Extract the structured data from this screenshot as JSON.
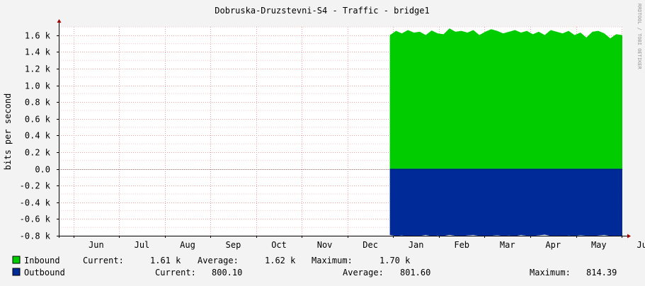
{
  "chart_data": {
    "type": "area",
    "title": "Dobruska-Druzstevni-S4 - Traffic - bridge1",
    "ylabel": "bits per second",
    "watermark": "RRDTOOL / TOBI OETIKER",
    "ylim": [
      -800,
      1700
    ],
    "grid": true,
    "y_ticks": [
      {
        "value": 1600,
        "label": "1.6 k"
      },
      {
        "value": 1400,
        "label": "1.4 k"
      },
      {
        "value": 1200,
        "label": "1.2 k"
      },
      {
        "value": 1000,
        "label": "1.0 k"
      },
      {
        "value": 800,
        "label": "0.8 k"
      },
      {
        "value": 600,
        "label": "0.6 k"
      },
      {
        "value": 400,
        "label": "0.4 k"
      },
      {
        "value": 200,
        "label": "0.2 k"
      },
      {
        "value": 0,
        "label": "0.0"
      },
      {
        "value": -200,
        "label": "-0.2 k"
      },
      {
        "value": -400,
        "label": "-0.4 k"
      },
      {
        "value": -600,
        "label": "-0.6 k"
      },
      {
        "value": -800,
        "label": "-0.8 k"
      }
    ],
    "x_domain": [
      0,
      12.35
    ],
    "month_boundaries": [
      0.32,
      1.32,
      2.32,
      3.32,
      4.32,
      5.32,
      6.32,
      7.32,
      8.32,
      9.32,
      10.32,
      11.32,
      12.32
    ],
    "x_ticks": [
      "Jun",
      "Jul",
      "Aug",
      "Sep",
      "Oct",
      "Nov",
      "Dec",
      "Jan",
      "Feb",
      "Mar",
      "Apr",
      "May",
      "Jun"
    ],
    "data_start": 7.25,
    "series": [
      {
        "name": "Inbound",
        "color": "#00cc00",
        "values": [
          1600,
          1650,
          1620,
          1660,
          1630,
          1640,
          1600,
          1655,
          1620,
          1610,
          1680,
          1640,
          1650,
          1630,
          1660,
          1600,
          1640,
          1670,
          1650,
          1620,
          1640,
          1660,
          1630,
          1650,
          1610,
          1640,
          1600,
          1660,
          1640,
          1620,
          1650,
          1600,
          1630,
          1570,
          1640,
          1650,
          1620,
          1560,
          1610,
          1600
        ],
        "stats": {
          "current_label": "Current:",
          "current": "1.61 k",
          "average_label": "Average:",
          "average": "1.62 k",
          "maximum_label": "Maximum:",
          "maximum": "1.70 k"
        }
      },
      {
        "name": "Outbound",
        "color": "#002a97",
        "values": [
          -790,
          -800,
          -795,
          -805,
          -798,
          -800,
          -790,
          -802,
          -796,
          -800,
          -788,
          -798,
          -802,
          -795,
          -790,
          -800,
          -805,
          -798,
          -792,
          -800,
          -796,
          -802,
          -790,
          -798,
          -800,
          -794,
          -786,
          -800,
          -798,
          -804,
          -796,
          -800,
          -792,
          -798,
          -802,
          -796,
          -790,
          -800,
          -798,
          -800
        ],
        "stats": {
          "current_label": "Current:",
          "current": "800.10",
          "average_label": "Average:",
          "average": "801.60",
          "maximum_label": "Maximum:",
          "maximum": "814.39"
        }
      }
    ]
  }
}
